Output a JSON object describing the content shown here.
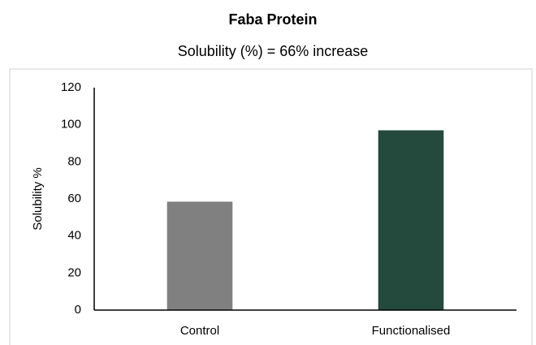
{
  "chart_data": {
    "type": "bar",
    "title": "Faba Protein",
    "subtitle": "Solubility (%) = 66% increase",
    "y_label": "Solubility %",
    "categories": [
      "Control",
      "Functionalised"
    ],
    "values": [
      58.5,
      97
    ],
    "colors": [
      "#808080",
      "#234a3c"
    ],
    "ylim": [
      0,
      120
    ],
    "yticks": [
      0,
      20,
      40,
      60,
      80,
      100,
      120
    ],
    "grid": false
  }
}
